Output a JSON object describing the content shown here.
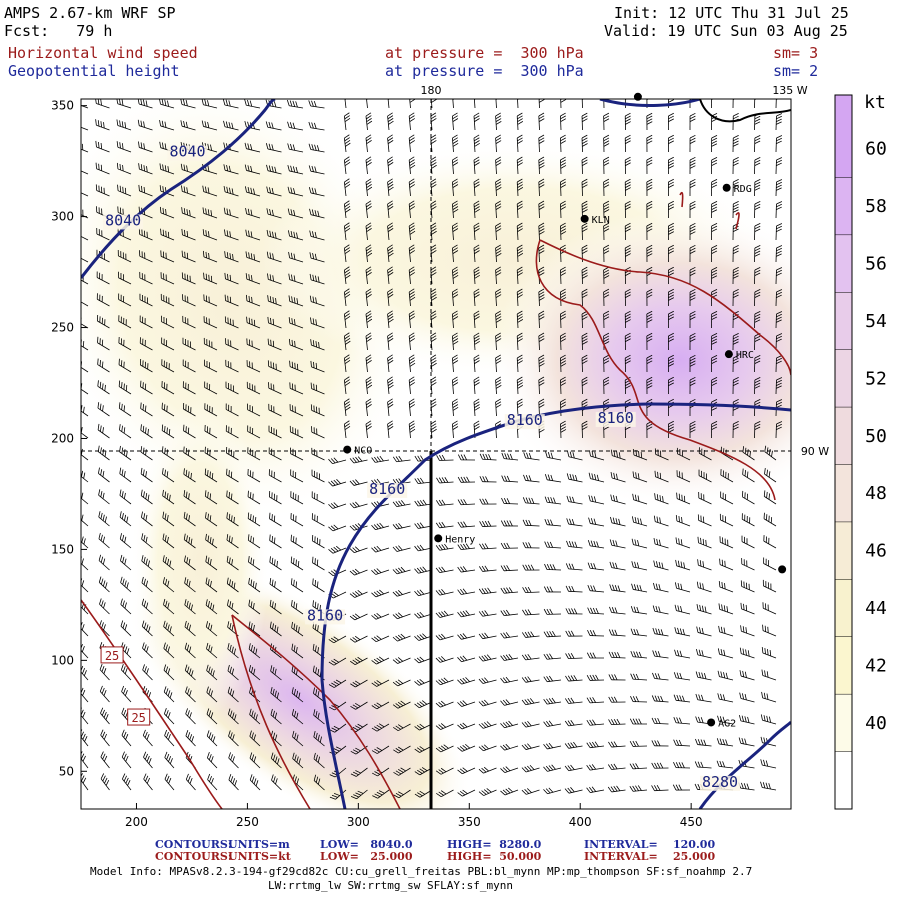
{
  "header": {
    "model": "AMPS 2.67-km WRF SP",
    "fcst": "Fcst:   79 h",
    "init": "Init: 12 UTC Thu 31 Jul 25",
    "valid": "Valid: 19 UTC Sun 03 Aug 25",
    "field1_name": "Horizontal wind speed",
    "field1_level": "at pressure =  300 hPa",
    "field1_sm": "sm= 3",
    "field2_name": "Geopotential height",
    "field2_level": "at pressure =  300 hPa",
    "field2_sm": "sm= 2"
  },
  "map": {
    "meridian_labels": [
      "180",
      "135 W",
      "90 W"
    ],
    "x_ticks": [
      "200",
      "250",
      "300",
      "350",
      "400",
      "450"
    ],
    "y_ticks": [
      "50",
      "100",
      "150",
      "200",
      "250",
      "300",
      "350"
    ],
    "stations": [
      {
        "name": "RDG",
        "x": 466,
        "y": 313
      },
      {
        "name": "KLN",
        "x": 402,
        "y": 299
      },
      {
        "name": "HRC",
        "x": 467,
        "y": 238
      },
      {
        "name": "NCO",
        "x": 295,
        "y": 195
      },
      {
        "name": "Henry",
        "x": 336,
        "y": 155
      },
      {
        "name": "AG2",
        "x": 459,
        "y": 72
      },
      {
        "name": "",
        "x": 491,
        "y": 141
      },
      {
        "name": "",
        "x": 426,
        "y": 354
      }
    ],
    "height_contour_labels": [
      {
        "text": "8040",
        "x": 223,
        "y": 327
      },
      {
        "text": "8040",
        "x": 194,
        "y": 296
      },
      {
        "text": "8160",
        "x": 375,
        "y": 206
      },
      {
        "text": "8160",
        "x": 416,
        "y": 207
      },
      {
        "text": "8160",
        "x": 313,
        "y": 175
      },
      {
        "text": "8160",
        "x": 285,
        "y": 118
      },
      {
        "text": "8280",
        "x": 463,
        "y": 43
      }
    ],
    "speed_contour_labels": [
      {
        "text": "25",
        "x": 189,
        "y": 102
      },
      {
        "text": "25",
        "x": 201,
        "y": 74
      }
    ]
  },
  "colorbar": {
    "unit": "kt",
    "labels": [
      "60",
      "58",
      "56",
      "54",
      "52",
      "50",
      "48",
      "46",
      "44",
      "42",
      "40"
    ],
    "colors": [
      "#d4a6f2",
      "#dcb4f2",
      "#e3c2f0",
      "#e8ccea",
      "#ecd5e4",
      "#efdbde",
      "#f3e4dc",
      "#f6ecd6",
      "#f8f2ce",
      "#fbf6cf",
      "#fdfbe8",
      "#ffffff"
    ]
  },
  "footer": {
    "line1_label": "CONTOURS:",
    "line1_units": "UNITS=m",
    "line1_low": "LOW=   8040.0",
    "line1_high": "HIGH=  8280.0",
    "line1_interval": "INTERVAL=    120.00",
    "line2_label": "CONTOURS:",
    "line2_units": "UNITS=kt",
    "line2_low": "LOW=   25.000",
    "line2_high": "HIGH=  50.000",
    "line2_interval": "INTERVAL=    25.000",
    "model_info1": "Model Info: MPASv8.2.3-194-gf29cd82c CU:cu_grell_freitas PBL:bl_mynn MP:mp_thompson SF:sf_noahmp 2.7",
    "model_info2": "LW:rrtmg_lw SW:rrtmg_sw SFLAY:sf_mynn"
  }
}
